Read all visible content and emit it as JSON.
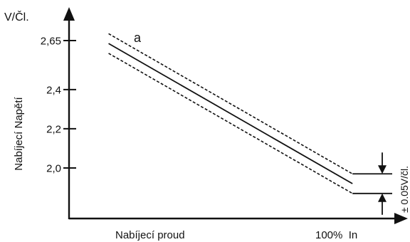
{
  "chart_data": {
    "type": "line",
    "unit_label": "V/Čl.",
    "ylabel": "Nabíjecí Napětí",
    "xlabel": "Nabíjecí proud",
    "x_end_label": "100%  In",
    "y_ticks": [
      {
        "value": 2.65,
        "label": "2,65"
      },
      {
        "value": 2.4,
        "label": "2,4"
      },
      {
        "value": 2.2,
        "label": "2,2"
      },
      {
        "value": 2.0,
        "label": "2,0"
      }
    ],
    "ylim": [
      1.78,
      2.92
    ],
    "xlim": [
      0,
      100
    ],
    "series": [
      {
        "name": "a",
        "style": "solid",
        "x": [
          12,
          86
        ],
        "y": [
          2.635,
          1.92
        ]
      },
      {
        "name": "",
        "style": "dashed",
        "x": [
          12,
          86
        ],
        "y": [
          2.685,
          1.97
        ]
      },
      {
        "name": "",
        "style": "dashed",
        "x": [
          12,
          86
        ],
        "y": [
          2.585,
          1.87
        ]
      }
    ],
    "tolerance": {
      "label": "± 0.05V/čl.",
      "delta": 0.05
    }
  }
}
